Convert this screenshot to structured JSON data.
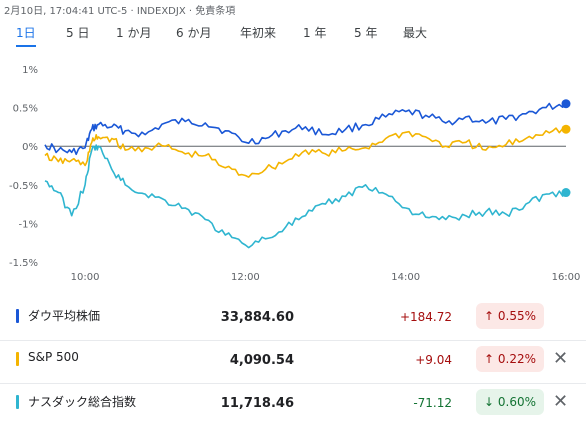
{
  "header": {
    "timestamp": "2月10日, 17:04:41 UTC-5 · INDEXDJX · 免責条項"
  },
  "tabs": [
    {
      "label": "1日",
      "active": true
    },
    {
      "label": "5 日",
      "active": false
    },
    {
      "label": "1 か月",
      "active": false
    },
    {
      "label": "6 か月",
      "active": false
    },
    {
      "label": "年初来",
      "active": false
    },
    {
      "label": "1 年",
      "active": false
    },
    {
      "label": "5 年",
      "active": false
    },
    {
      "label": "最大",
      "active": false
    }
  ],
  "colors": {
    "dow": "#1a57d6",
    "sp500": "#f4b400",
    "nasdaq": "#2fb5d0",
    "zero_line": "#5f6368",
    "up": "#a50e0e",
    "down": "#137333"
  },
  "chart_data": {
    "type": "line",
    "x_ticks": [
      "10:00",
      "12:00",
      "14:00",
      "16:00"
    ],
    "y_ticks": [
      "1%",
      "0.5%",
      "0%",
      "-0.5%",
      "-1%",
      "-1.5%"
    ],
    "ylim": [
      -1.5,
      1.0
    ],
    "x_range": [
      "9:30",
      "16:00"
    ],
    "series": [
      {
        "name": "ダウ平均株価",
        "color": "#1a57d6",
        "x": [
          "9:30",
          "9:40",
          "9:50",
          "10:00",
          "10:05",
          "10:10",
          "10:20",
          "10:30",
          "10:45",
          "11:00",
          "11:15",
          "11:30",
          "11:45",
          "12:00",
          "12:15",
          "12:30",
          "12:45",
          "13:00",
          "13:15",
          "13:30",
          "13:45",
          "14:00",
          "14:15",
          "14:30",
          "14:45",
          "15:00",
          "15:15",
          "15:30",
          "15:45",
          "16:00"
        ],
        "values": [
          0.02,
          -0.05,
          -0.08,
          -0.02,
          0.22,
          0.28,
          0.25,
          0.2,
          0.15,
          0.3,
          0.32,
          0.3,
          0.2,
          0.05,
          0.1,
          0.2,
          0.25,
          0.15,
          0.22,
          0.28,
          0.38,
          0.45,
          0.4,
          0.3,
          0.38,
          0.3,
          0.35,
          0.42,
          0.5,
          0.55
        ]
      },
      {
        "name": "S&P 500",
        "color": "#f4b400",
        "x": [
          "9:30",
          "9:40",
          "9:50",
          "10:00",
          "10:05",
          "10:10",
          "10:20",
          "10:30",
          "10:45",
          "11:00",
          "11:15",
          "11:30",
          "11:45",
          "12:00",
          "12:15",
          "12:30",
          "12:45",
          "13:00",
          "13:15",
          "13:30",
          "13:45",
          "14:00",
          "14:15",
          "14:30",
          "14:45",
          "15:00",
          "15:15",
          "15:30",
          "15:45",
          "16:00"
        ],
        "values": [
          -0.12,
          -0.2,
          -0.18,
          -0.25,
          0.05,
          0.12,
          0.1,
          -0.05,
          -0.02,
          0.0,
          -0.1,
          -0.12,
          -0.28,
          -0.38,
          -0.3,
          -0.2,
          -0.05,
          -0.1,
          -0.05,
          -0.02,
          0.1,
          0.18,
          0.12,
          0.0,
          0.05,
          -0.05,
          0.02,
          0.1,
          0.2,
          0.22
        ]
      },
      {
        "name": "ナスダック総合指数",
        "color": "#2fb5d0",
        "x": [
          "9:30",
          "9:40",
          "9:50",
          "10:00",
          "10:05",
          "10:10",
          "10:20",
          "10:30",
          "10:45",
          "11:00",
          "11:15",
          "11:30",
          "11:45",
          "12:00",
          "12:15",
          "12:30",
          "12:45",
          "13:00",
          "13:15",
          "13:30",
          "13:45",
          "14:00",
          "14:15",
          "14:30",
          "14:45",
          "15:00",
          "15:15",
          "15:30",
          "15:45",
          "16:00"
        ],
        "values": [
          -0.45,
          -0.6,
          -0.9,
          -0.5,
          -0.05,
          0.0,
          -0.3,
          -0.5,
          -0.62,
          -0.7,
          -0.8,
          -0.95,
          -1.15,
          -1.28,
          -1.2,
          -1.05,
          -0.9,
          -0.75,
          -0.65,
          -0.5,
          -0.62,
          -0.8,
          -0.92,
          -0.95,
          -0.9,
          -0.85,
          -0.88,
          -0.75,
          -0.62,
          -0.6
        ]
      }
    ]
  },
  "indices": [
    {
      "name": "ダウ平均株価",
      "price": "33,884.60",
      "change": "+184.72",
      "pct": "↑ 0.55%",
      "direction": "up",
      "color": "#1a57d6",
      "close": ""
    },
    {
      "name": "S&P 500",
      "price": "4,090.54",
      "change": "+9.04",
      "pct": "↑ 0.22%",
      "direction": "up",
      "color": "#f4b400",
      "close": "✕"
    },
    {
      "name": "ナスダック総合指数",
      "price": "11,718.46",
      "change": "-71.12",
      "pct": "↓ 0.60%",
      "direction": "down",
      "color": "#2fb5d0",
      "close": "✕"
    }
  ]
}
